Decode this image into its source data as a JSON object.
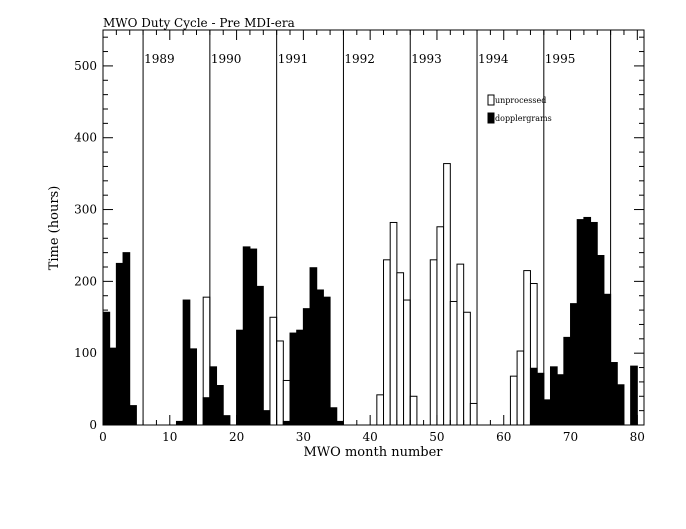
{
  "chart_data": {
    "type": "bar",
    "title": "MWO Duty Cycle - Pre MDI-era",
    "xlabel": "MWO month number",
    "ylabel": "Time (hours)",
    "xlim": [
      0,
      81
    ],
    "ylim": [
      0,
      550
    ],
    "x_ticks": [
      0,
      10,
      20,
      30,
      40,
      50,
      60,
      70,
      80
    ],
    "y_ticks": [
      0,
      100,
      200,
      300,
      400,
      500
    ],
    "grid": false,
    "legend_position": "top-right",
    "year_markers": [
      {
        "x": 6,
        "label": "1989"
      },
      {
        "x": 16,
        "label": "1990"
      },
      {
        "x": 26,
        "label": "1991"
      },
      {
        "x": 36,
        "label": "1992"
      },
      {
        "x": 46,
        "label": "1993"
      },
      {
        "x": 56,
        "label": "1994"
      },
      {
        "x": 66,
        "label": "1995"
      },
      {
        "x": 76,
        "label": ""
      }
    ],
    "series": [
      {
        "name": "unprocessed",
        "style": "open",
        "points": [
          [
            15,
            178
          ],
          [
            25,
            150
          ],
          [
            26,
            117
          ],
          [
            27,
            62
          ],
          [
            28,
            80
          ],
          [
            41,
            42
          ],
          [
            42,
            230
          ],
          [
            43,
            282
          ],
          [
            44,
            212
          ],
          [
            45,
            174
          ],
          [
            46,
            40
          ],
          [
            49,
            230
          ],
          [
            50,
            276
          ],
          [
            51,
            364
          ],
          [
            52,
            172
          ],
          [
            53,
            224
          ],
          [
            54,
            157
          ],
          [
            55,
            30
          ],
          [
            61,
            68
          ],
          [
            62,
            103
          ],
          [
            63,
            215
          ],
          [
            64,
            197
          ]
        ]
      },
      {
        "name": "dopplergrams",
        "style": "filled",
        "points": [
          [
            0,
            157
          ],
          [
            1,
            107
          ],
          [
            2,
            225
          ],
          [
            3,
            240
          ],
          [
            4,
            27
          ],
          [
            11,
            5
          ],
          [
            12,
            174
          ],
          [
            13,
            106
          ],
          [
            15,
            38
          ],
          [
            16,
            81
          ],
          [
            17,
            55
          ],
          [
            18,
            13
          ],
          [
            20,
            132
          ],
          [
            21,
            248
          ],
          [
            22,
            245
          ],
          [
            23,
            193
          ],
          [
            24,
            20
          ],
          [
            27,
            5
          ],
          [
            28,
            128
          ],
          [
            29,
            132
          ],
          [
            30,
            162
          ],
          [
            31,
            219
          ],
          [
            32,
            188
          ],
          [
            33,
            178
          ],
          [
            34,
            24
          ],
          [
            35,
            5
          ],
          [
            64,
            79
          ],
          [
            65,
            72
          ],
          [
            66,
            35
          ],
          [
            67,
            81
          ],
          [
            68,
            70
          ],
          [
            69,
            122
          ],
          [
            70,
            169
          ],
          [
            71,
            286
          ],
          [
            72,
            289
          ],
          [
            73,
            282
          ],
          [
            74,
            236
          ],
          [
            75,
            182
          ],
          [
            76,
            87
          ],
          [
            77,
            56
          ],
          [
            79,
            82
          ]
        ]
      }
    ]
  }
}
